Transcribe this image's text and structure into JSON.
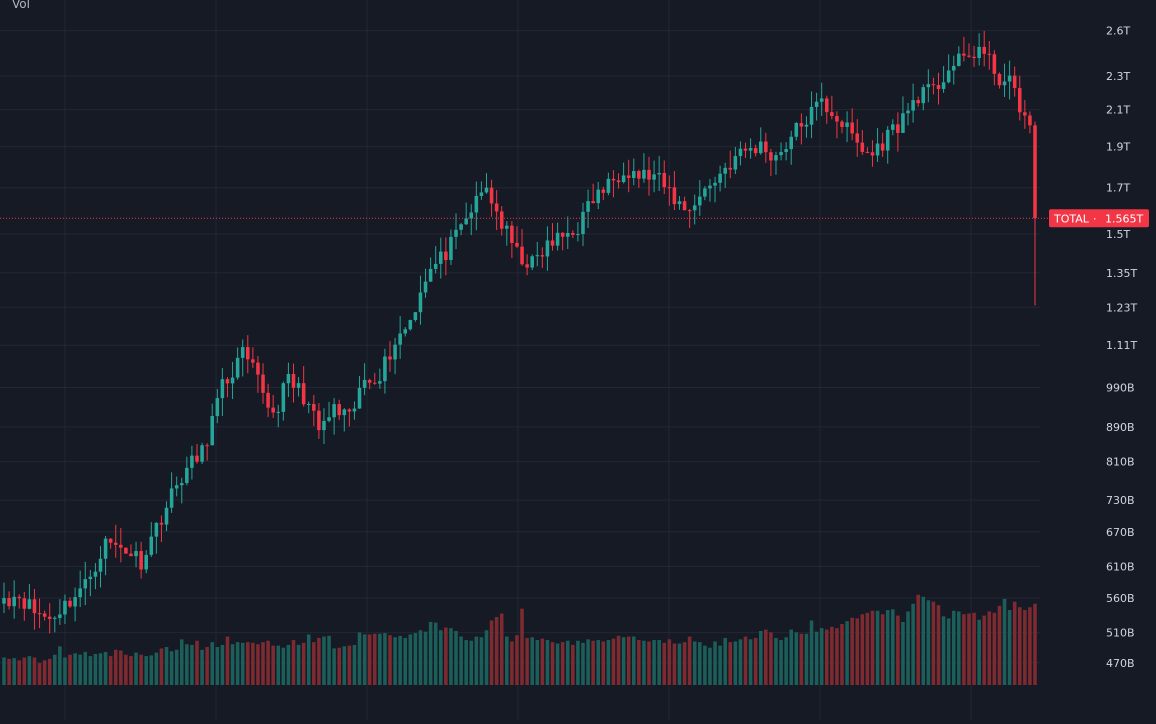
{
  "panel_label": "Vol",
  "price_tag": {
    "label": "TOTAL",
    "value": "1.565T",
    "color": "#f23645"
  },
  "colors": {
    "background": "#161a25",
    "grid": "#232733",
    "up": "#26a69a",
    "down": "#f23645",
    "up_volume": "#1b5e5a",
    "down_volume": "#7d2a30",
    "axis_text": "#d1d4dc",
    "last_price_line": "#f23645"
  },
  "chart_data": {
    "type": "candlestick",
    "y_axis": {
      "scale": "log",
      "ticks": [
        "2.6T",
        "2.3T",
        "2.1T",
        "1.9T",
        "1.7T",
        "1.5T",
        "1.35T",
        "1.23T",
        "1.11T",
        "990B",
        "890B",
        "810B",
        "730B",
        "670B",
        "610B",
        "560B",
        "510B",
        "470B"
      ],
      "tick_values_billions": [
        2600,
        2300,
        2100,
        1900,
        1700,
        1500,
        1350,
        1230,
        1110,
        990,
        890,
        810,
        730,
        670,
        610,
        560,
        510,
        470
      ],
      "range_billions": [
        425,
        2720
      ]
    },
    "last_value_billions": 1565,
    "anchors": [
      [
        0,
        560
      ],
      [
        3,
        565
      ],
      [
        6,
        540
      ],
      [
        9,
        530
      ],
      [
        12,
        550
      ],
      [
        16,
        580
      ],
      [
        20,
        650
      ],
      [
        24,
        640
      ],
      [
        27,
        620
      ],
      [
        31,
        700
      ],
      [
        35,
        780
      ],
      [
        39,
        830
      ],
      [
        43,
        990
      ],
      [
        47,
        1080
      ],
      [
        50,
        1010
      ],
      [
        53,
        920
      ],
      [
        56,
        1010
      ],
      [
        59,
        970
      ],
      [
        62,
        880
      ],
      [
        65,
        930
      ],
      [
        68,
        905
      ],
      [
        71,
        1010
      ],
      [
        74,
        1030
      ],
      [
        77,
        1120
      ],
      [
        80,
        1190
      ],
      [
        83,
        1340
      ],
      [
        86,
        1400
      ],
      [
        89,
        1480
      ],
      [
        92,
        1600
      ],
      [
        95,
        1700
      ],
      [
        98,
        1540
      ],
      [
        101,
        1420
      ],
      [
        104,
        1380
      ],
      [
        107,
        1450
      ],
      [
        110,
        1490
      ],
      [
        113,
        1530
      ],
      [
        116,
        1650
      ],
      [
        119,
        1710
      ],
      [
        122,
        1800
      ],
      [
        125,
        1760
      ],
      [
        128,
        1750
      ],
      [
        131,
        1680
      ],
      [
        134,
        1600
      ],
      [
        137,
        1660
      ],
      [
        140,
        1740
      ],
      [
        143,
        1820
      ],
      [
        146,
        1880
      ],
      [
        149,
        1900
      ],
      [
        152,
        1850
      ],
      [
        155,
        1950
      ],
      [
        158,
        2050
      ],
      [
        161,
        2140
      ],
      [
        164,
        2060
      ],
      [
        167,
        1950
      ],
      [
        169,
        1880
      ],
      [
        171,
        1860
      ],
      [
        174,
        1960
      ],
      [
        177,
        2050
      ],
      [
        180,
        2190
      ],
      [
        183,
        2200
      ],
      [
        186,
        2350
      ],
      [
        189,
        2400
      ],
      [
        192,
        2480
      ],
      [
        194,
        2380
      ],
      [
        196,
        2290
      ],
      [
        198,
        2250
      ],
      [
        200,
        2130
      ],
      [
        202,
        1990
      ],
      [
        203,
        1565
      ]
    ],
    "volume_relative": [
      0.28,
      0.26,
      0.27,
      0.24,
      0.28,
      0.3,
      0.28,
      0.2,
      0.24,
      0.26,
      0.32,
      0.44,
      0.28,
      0.32,
      0.34,
      0.32,
      0.36,
      0.3,
      0.33,
      0.34,
      0.36,
      0.3,
      0.39,
      0.38,
      0.32,
      0.3,
      0.35,
      0.32,
      0.3,
      0.31,
      0.35,
      0.41,
      0.43,
      0.37,
      0.39,
      0.54,
      0.47,
      0.46,
      0.52,
      0.39,
      0.43,
      0.5,
      0.43,
      0.46,
      0.58,
      0.47,
      0.5,
      0.49,
      0.5,
      0.49,
      0.47,
      0.5,
      0.52,
      0.45,
      0.45,
      0.42,
      0.46,
      0.53,
      0.46,
      0.49,
      0.61,
      0.5,
      0.56,
      0.58,
      0.59,
      0.41,
      0.42,
      0.44,
      0.45,
      0.46,
      0.64,
      0.61,
      0.61,
      0.62,
      0.62,
      0.63,
      0.6,
      0.57,
      0.59,
      0.56,
      0.61,
      0.63,
      0.67,
      0.65,
      0.79,
      0.78,
      0.67,
      0.71,
      0.7,
      0.66,
      0.58,
      0.53,
      0.52,
      0.58,
      0.57,
      0.67,
      0.81,
      0.86,
      0.91,
      0.58,
      0.51,
      0.6,
      0.98,
      0.56,
      0.57,
      0.53,
      0.55,
      0.53,
      0.5,
      0.48,
      0.5,
      0.52,
      0.46,
      0.52,
      0.49,
      0.54,
      0.52,
      0.53,
      0.51,
      0.53,
      0.55,
      0.59,
      0.57,
      0.58,
      0.58,
      0.53,
      0.52,
      0.51,
      0.53,
      0.53,
      0.49,
      0.54,
      0.48,
      0.48,
      0.5,
      0.58,
      0.51,
      0.5,
      0.45,
      0.42,
      0.51,
      0.45,
      0.56,
      0.5,
      0.51,
      0.54,
      0.58,
      0.54,
      0.56,
      0.66,
      0.68,
      0.64,
      0.56,
      0.53,
      0.57,
      0.68,
      0.64,
      0.62,
      0.62,
      0.81,
      0.65,
      0.7,
      0.68,
      0.72,
      0.7,
      0.76,
      0.8,
      0.85,
      0.84,
      0.9,
      0.92,
      0.95,
      0.95,
      0.9,
      0.96,
      0.97,
      0.88,
      0.79,
      0.94,
      1.05,
      1.18,
      1.15,
      1.1,
      1.08,
      1.03,
      0.87,
      0.84,
      0.95,
      0.94,
      0.9,
      0.91,
      0.92,
      0.82,
      0.88,
      0.94,
      0.92,
      1.02,
      1.12,
      0.96,
      1.08,
      1.0,
      0.96,
      1.0,
      1.05
    ]
  }
}
